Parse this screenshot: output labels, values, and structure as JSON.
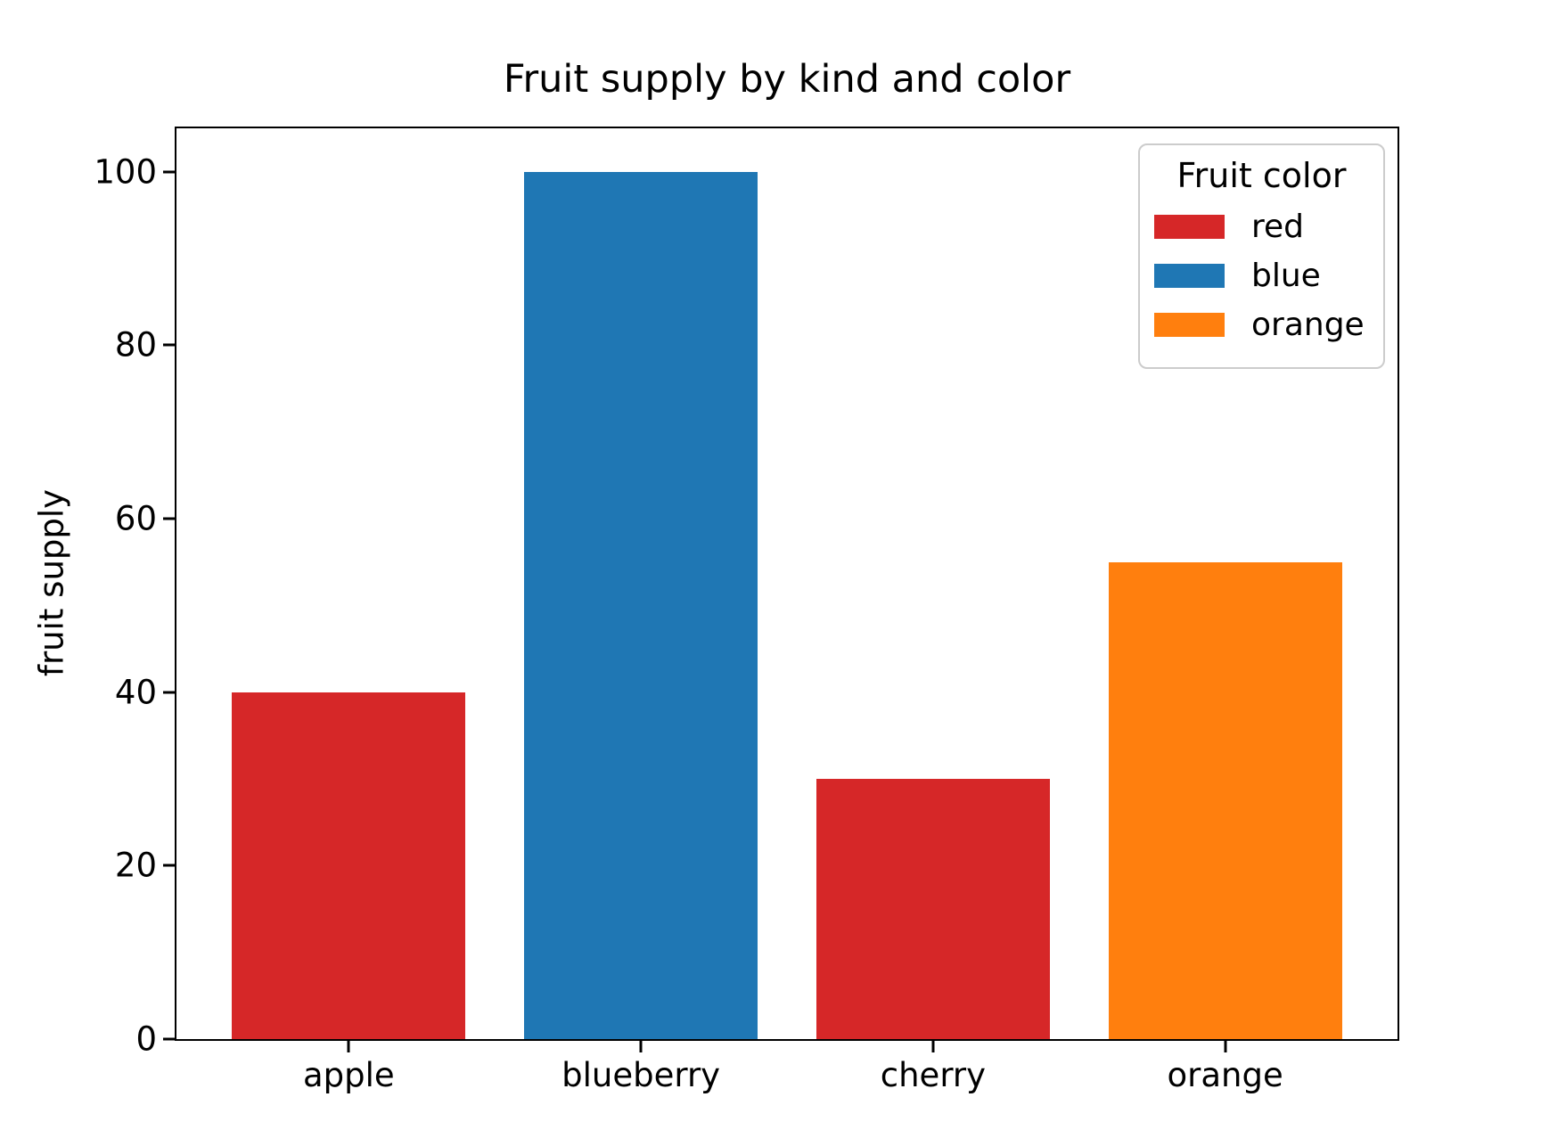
{
  "chart_data": {
    "type": "bar",
    "title": "Fruit supply by kind and color",
    "xlabel": "",
    "ylabel": "fruit supply",
    "categories": [
      "apple",
      "blueberry",
      "cherry",
      "orange"
    ],
    "values": [
      40,
      100,
      30,
      55
    ],
    "bar_colors": [
      "#d62728",
      "#1f77b4",
      "#d62728",
      "#ff7f0e"
    ],
    "bar_width": 0.8,
    "xlim": [
      -0.59,
      3.59
    ],
    "ylim": [
      0,
      105
    ],
    "yticks": [
      0,
      20,
      40,
      60,
      80,
      100
    ],
    "grid": false,
    "background_color": "#ffffff",
    "spine_color": "#000000",
    "legend": {
      "title": "Fruit color",
      "position": "upper right",
      "border_color": "#cccccc",
      "entries": [
        {
          "label": "red",
          "color": "#d62728"
        },
        {
          "label": "blue",
          "color": "#1f77b4"
        },
        {
          "label": "orange",
          "color": "#ff7f0e"
        }
      ]
    }
  }
}
